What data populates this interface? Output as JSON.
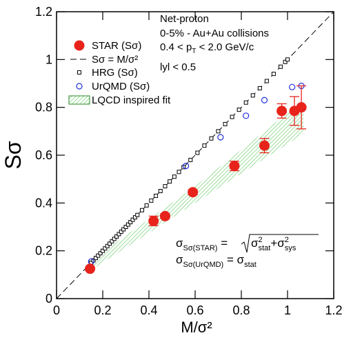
{
  "chart_data": {
    "type": "scatter",
    "x_label": "M/σ²",
    "y_label": "Sσ",
    "xlim": [
      0,
      1.2
    ],
    "ylim": [
      0,
      1.2
    ],
    "xticks": [
      0,
      0.2,
      0.4,
      0.6,
      0.8,
      1,
      1.2
    ],
    "yticks": [
      0,
      0.2,
      0.4,
      0.6,
      0.8,
      1,
      1.2
    ],
    "annotations": [
      "Net-proton",
      "0-5% - Au+Au collisions",
      [
        "0.4 < p",
        "T",
        " < 2.0 GeV/c"
      ],
      "lyl < 0.5"
    ],
    "formulas": [
      [
        "σ",
        "Sσ(STAR)",
        " = ",
        "σ",
        "2",
        "stat",
        "+σ",
        "2",
        "sys"
      ],
      [
        "σ",
        "Sσ(UrQMD)",
        " = σ",
        "stat"
      ]
    ],
    "series": [
      {
        "name": "STAR (Sσ)",
        "color": "#e8231b",
        "marker": "filled-circle",
        "x": [
          0.145,
          0.42,
          0.47,
          0.59,
          0.77,
          0.9,
          0.975,
          1.03,
          1.06
        ],
        "values": [
          0.125,
          0.325,
          0.345,
          0.445,
          0.555,
          0.64,
          0.785,
          0.785,
          0.8
        ],
        "errors": [
          0.005,
          0.02,
          0.01,
          0.01,
          0.02,
          0.03,
          0.03,
          0.06,
          0.09
        ]
      },
      {
        "name": "Sσ = M/σ²",
        "color": "#000000",
        "marker": "dashed-line",
        "x": [
          0,
          1.2
        ],
        "values": [
          0,
          1.2
        ]
      },
      {
        "name": "HRG (Sσ)",
        "color": "#000000",
        "marker": "open-square",
        "x": [
          0.15,
          0.16,
          0.17,
          0.18,
          0.19,
          0.2,
          0.21,
          0.22,
          0.23,
          0.24,
          0.25,
          0.26,
          0.27,
          0.28,
          0.29,
          0.3,
          0.31,
          0.32,
          0.33,
          0.34,
          0.35,
          0.37,
          0.39,
          0.41,
          0.43,
          0.45,
          0.47,
          0.49,
          0.51,
          0.53,
          0.55,
          0.58,
          0.61,
          0.64,
          0.67,
          0.7,
          0.73,
          0.76,
          0.79,
          0.82,
          0.85,
          0.88,
          0.91,
          0.94,
          0.97,
          0.99,
          1.0
        ],
        "values": [
          0.15,
          0.16,
          0.17,
          0.18,
          0.19,
          0.2,
          0.21,
          0.22,
          0.23,
          0.24,
          0.25,
          0.26,
          0.27,
          0.28,
          0.29,
          0.3,
          0.31,
          0.32,
          0.33,
          0.34,
          0.35,
          0.37,
          0.39,
          0.41,
          0.43,
          0.45,
          0.47,
          0.49,
          0.51,
          0.53,
          0.55,
          0.58,
          0.61,
          0.64,
          0.67,
          0.7,
          0.73,
          0.76,
          0.79,
          0.82,
          0.85,
          0.88,
          0.91,
          0.94,
          0.97,
          0.99,
          1.0
        ]
      },
      {
        "name": "UrQMD (Sσ)",
        "color": "#1f2fd8",
        "marker": "open-circle",
        "x": [
          0.15,
          0.56,
          0.71,
          0.82,
          0.9,
          1.02,
          1.06
        ],
        "values": [
          0.155,
          0.555,
          0.675,
          0.765,
          0.83,
          0.885,
          0.89
        ]
      },
      {
        "name": "LQCD inspired fit",
        "color": "#6fcf6f",
        "marker": "hatched-band",
        "x": [
          0.15,
          0.6,
          1.07
        ],
        "lower": [
          0.12,
          0.4,
          0.69
        ],
        "upper": [
          0.16,
          0.47,
          0.83
        ]
      }
    ]
  }
}
